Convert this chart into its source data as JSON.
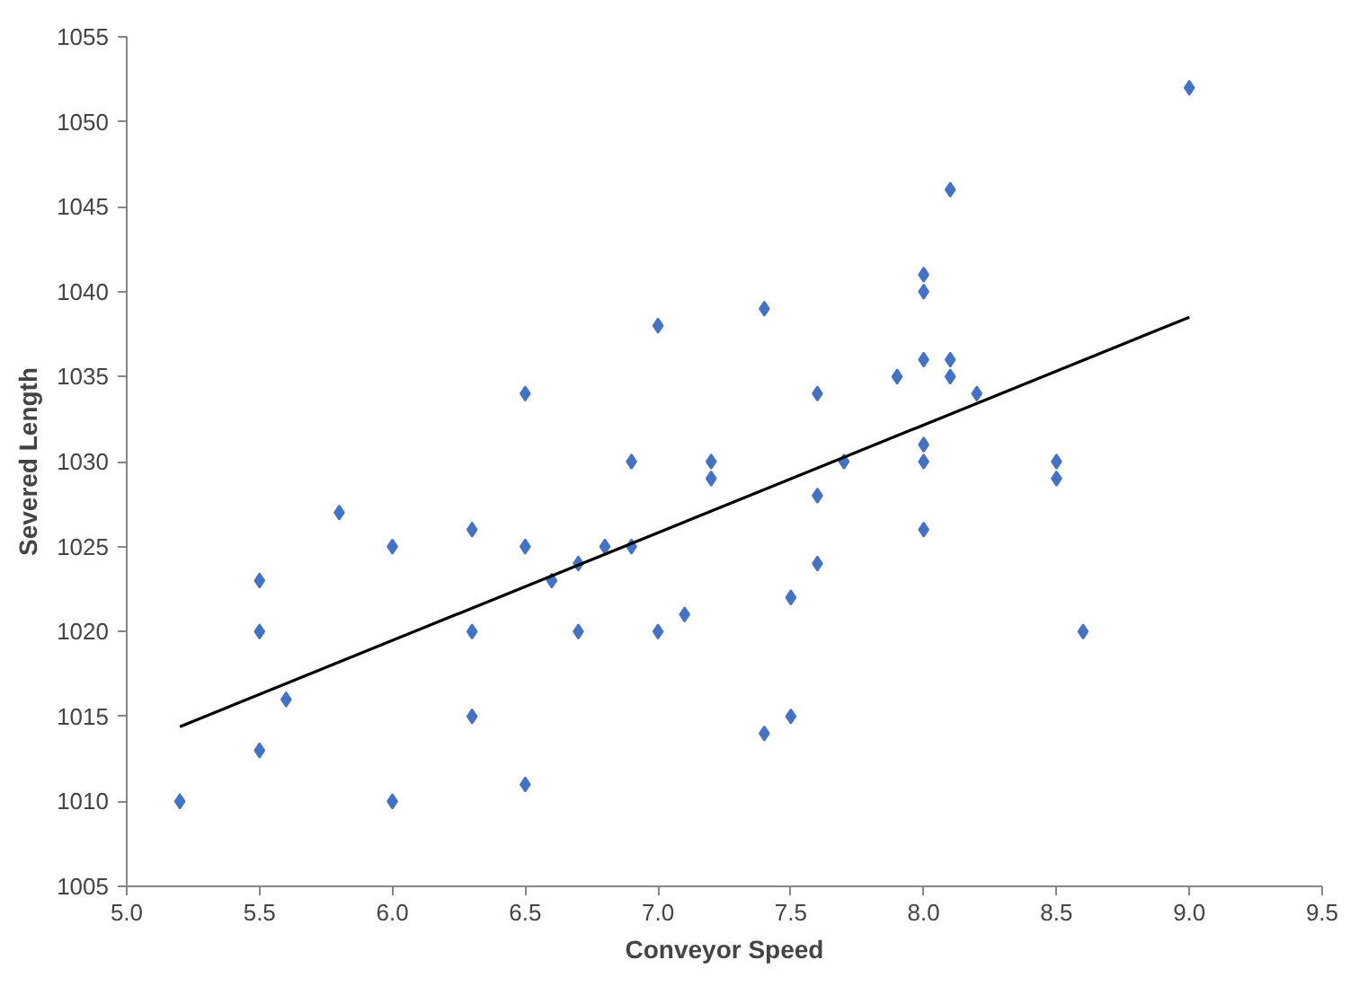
{
  "chart_data": {
    "type": "scatter",
    "xlabel": "Conveyor Speed",
    "ylabel": "Severed Length",
    "xlim": [
      5.0,
      9.5
    ],
    "xticks": [
      {
        "value": 5.0,
        "label": "5.0"
      },
      {
        "value": 5.5,
        "label": "5.5"
      },
      {
        "value": 6.0,
        "label": "6.0"
      },
      {
        "value": 6.5,
        "label": "6.5"
      },
      {
        "value": 7.0,
        "label": "7.0"
      },
      {
        "value": 7.5,
        "label": "7.5"
      },
      {
        "value": 8.0,
        "label": "8.0"
      },
      {
        "value": 8.5,
        "label": "8.5"
      },
      {
        "value": 9.0,
        "label": "9.0"
      },
      {
        "value": 9.5,
        "label": "9.5"
      }
    ],
    "ylim": [
      1005,
      1055
    ],
    "yticks": [
      1005,
      1010,
      1015,
      1020,
      1025,
      1030,
      1035,
      1040,
      1045,
      1050,
      1055
    ],
    "grid": false,
    "series": [
      {
        "marker": "diamond",
        "color": "#4472c4",
        "x": [
          5.2,
          5.5,
          5.5,
          5.5,
          5.6,
          5.8,
          6.0,
          6.0,
          6.3,
          6.3,
          6.3,
          6.5,
          6.5,
          6.5,
          6.6,
          6.7,
          6.7,
          6.8,
          6.9,
          6.9,
          7.0,
          7.0,
          7.1,
          7.2,
          7.2,
          7.4,
          7.4,
          7.5,
          7.5,
          7.6,
          7.6,
          7.6,
          7.7,
          7.9,
          8.0,
          8.0,
          8.0,
          8.0,
          8.0,
          8.0,
          8.1,
          8.1,
          8.1,
          8.2,
          8.5,
          8.5,
          8.6,
          9.0
        ],
        "values": [
          1010,
          1023,
          1020,
          1013,
          1016,
          1027,
          1025,
          1010,
          1026,
          1020,
          1015,
          1034,
          1025,
          1011,
          1023,
          1024,
          1020,
          1025,
          1030,
          1025,
          1038,
          1020,
          1021,
          1030,
          1029,
          1039,
          1014,
          1022,
          1015,
          1034,
          1028,
          1024,
          1030,
          1035,
          1041,
          1040,
          1036,
          1031,
          1030,
          1026,
          1046,
          1036,
          1035,
          1034,
          1030,
          1029,
          1020,
          1052
        ]
      },
      {
        "type": "line",
        "marker": "none",
        "color": "#000000",
        "x": [
          5.2,
          9.0
        ],
        "values": [
          1014.4,
          1038.5
        ]
      }
    ]
  }
}
